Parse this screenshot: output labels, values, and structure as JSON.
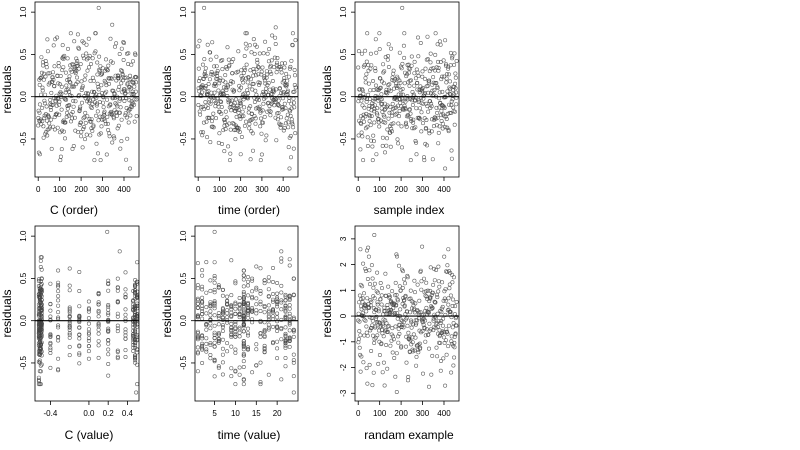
{
  "chart_data": [
    {
      "type": "scatter",
      "xlabel": "C (order)",
      "ylabel": "residuals",
      "xlim": [
        -15,
        470
      ],
      "ylim": [
        -0.95,
        1.12
      ],
      "xticks": [
        0,
        100,
        200,
        300,
        400
      ],
      "xtick_labels": [
        "0",
        "100",
        "200",
        "300",
        "400"
      ],
      "yticks": [
        -0.5,
        0.0,
        0.5,
        1.0
      ],
      "ytick_labels": [
        "-0.5",
        "0.0",
        "0.5",
        "1.0"
      ],
      "reference_line_y": 0,
      "point_style": "open-circle",
      "n_points": 460,
      "seed": 11,
      "pattern": "order",
      "spread": 0.3,
      "outliers": [
        [
          8,
          -0.68
        ],
        [
          110,
          -0.62
        ],
        [
          282,
          1.05
        ],
        [
          345,
          0.85
        ],
        [
          428,
          -0.85
        ]
      ]
    },
    {
      "type": "scatter",
      "xlabel": "time (order)",
      "ylabel": "residuals",
      "xlim": [
        -15,
        470
      ],
      "ylim": [
        -0.95,
        1.12
      ],
      "xticks": [
        0,
        100,
        200,
        300,
        400
      ],
      "xtick_labels": [
        "0",
        "100",
        "200",
        "300",
        "400"
      ],
      "yticks": [
        -0.5,
        0.0,
        0.5,
        1.0
      ],
      "ytick_labels": [
        "-0.5",
        "0.0",
        "0.5",
        "1.0"
      ],
      "reference_line_y": 0,
      "point_style": "open-circle",
      "n_points": 460,
      "seed": 23,
      "pattern": "order",
      "spread": 0.3,
      "outliers": [
        [
          28,
          1.05
        ],
        [
          200,
          -0.68
        ],
        [
          365,
          0.82
        ],
        [
          430,
          -0.85
        ]
      ]
    },
    {
      "type": "scatter",
      "xlabel": "sample index",
      "ylabel": "residuals",
      "xlim": [
        -15,
        470
      ],
      "ylim": [
        -0.95,
        1.12
      ],
      "xticks": [
        0,
        100,
        200,
        300,
        400
      ],
      "xtick_labels": [
        "0",
        "100",
        "200",
        "300",
        "400"
      ],
      "yticks": [
        -0.5,
        0.0,
        0.5,
        1.0
      ],
      "ytick_labels": [
        "-0.5",
        "0.0",
        "0.5",
        "1.0"
      ],
      "reference_line_y": 0,
      "point_style": "open-circle",
      "n_points": 460,
      "seed": 37,
      "pattern": "order",
      "spread": 0.3,
      "outliers": [
        [
          85,
          -0.68
        ],
        [
          205,
          1.05
        ],
        [
          405,
          -0.85
        ],
        [
          370,
          0.62
        ]
      ]
    },
    {
      "type": "scatter",
      "xlabel": "C (value)",
      "ylabel": "residuals",
      "xlim": [
        -0.56,
        0.52
      ],
      "ylim": [
        -0.95,
        1.12
      ],
      "xticks": [
        -0.4,
        0.0,
        0.2,
        0.4
      ],
      "xtick_labels": [
        "-0.4",
        "0.0",
        "0.2",
        "0.4"
      ],
      "yticks": [
        -0.5,
        0.0,
        0.5,
        1.0
      ],
      "ytick_labels": [
        "-0.5",
        "0.0",
        "0.5",
        "1.0"
      ],
      "reference_line_y": 0,
      "point_style": "open-circle",
      "n_points": 460,
      "seed": 41,
      "pattern": "discrete",
      "spread": 0.3,
      "levels": [
        -0.52,
        -0.51,
        -0.5,
        -0.49,
        -0.4,
        -0.32,
        -0.2,
        -0.1,
        0.0,
        0.1,
        0.2,
        0.3,
        0.38,
        0.46,
        0.48,
        0.5
      ],
      "level_weights": [
        4,
        6,
        5,
        4,
        2,
        2,
        2,
        2,
        2,
        2,
        2,
        2,
        2,
        3,
        4,
        4
      ],
      "outliers": [
        [
          0.19,
          1.05
        ],
        [
          0.32,
          0.82
        ],
        [
          -0.52,
          -0.7
        ],
        [
          0.49,
          -0.85
        ]
      ]
    },
    {
      "type": "scatter",
      "xlabel": "time (value)",
      "ylabel": "residuals",
      "xlim": [
        0.3,
        25
      ],
      "ylim": [
        -0.95,
        1.12
      ],
      "xticks": [
        5,
        10,
        15,
        20
      ],
      "xtick_labels": [
        "5",
        "10",
        "15",
        "20"
      ],
      "yticks": [
        -0.5,
        0.0,
        0.5,
        1.0
      ],
      "ytick_labels": [
        "-0.5",
        "0.0",
        "0.5",
        "1.0"
      ],
      "reference_line_y": 0,
      "point_style": "open-circle",
      "n_points": 460,
      "seed": 53,
      "pattern": "discrete",
      "spread": 0.3,
      "levels": [
        1,
        2,
        3,
        4,
        5,
        6,
        7,
        8,
        9,
        10,
        11,
        12,
        13,
        14,
        15,
        16,
        17,
        18,
        19,
        20,
        21,
        22,
        23,
        24
      ],
      "level_weights": [
        2,
        2,
        2,
        2,
        2,
        2,
        2,
        2,
        2,
        2,
        2,
        6,
        2,
        2,
        2,
        2,
        2,
        2,
        2,
        2,
        2,
        3,
        2,
        2
      ],
      "outliers": [
        [
          5,
          1.05
        ],
        [
          21,
          0.82
        ],
        [
          12,
          -0.7
        ],
        [
          24,
          -0.85
        ]
      ]
    },
    {
      "type": "scatter",
      "xlabel": "randam example",
      "ylabel": "residuals",
      "xlim": [
        -15,
        470
      ],
      "ylim": [
        -3.3,
        3.5
      ],
      "xticks": [
        0,
        100,
        200,
        300,
        400
      ],
      "xtick_labels": [
        "0",
        "100",
        "200",
        "300",
        "400"
      ],
      "yticks": [
        -3,
        -2,
        -1,
        0,
        1,
        2,
        3
      ],
      "ytick_labels": [
        "-3",
        "-2",
        "-1",
        "0",
        "1",
        "2",
        "3"
      ],
      "reference_line_y": 0,
      "point_style": "open-circle",
      "n_points": 460,
      "seed": 67,
      "pattern": "normal",
      "spread": 1.0,
      "outliers": [
        [
          75,
          3.15
        ],
        [
          10,
          2.6
        ],
        [
          180,
          -2.95
        ],
        [
          330,
          -2.75
        ],
        [
          420,
          2.6
        ]
      ]
    }
  ]
}
